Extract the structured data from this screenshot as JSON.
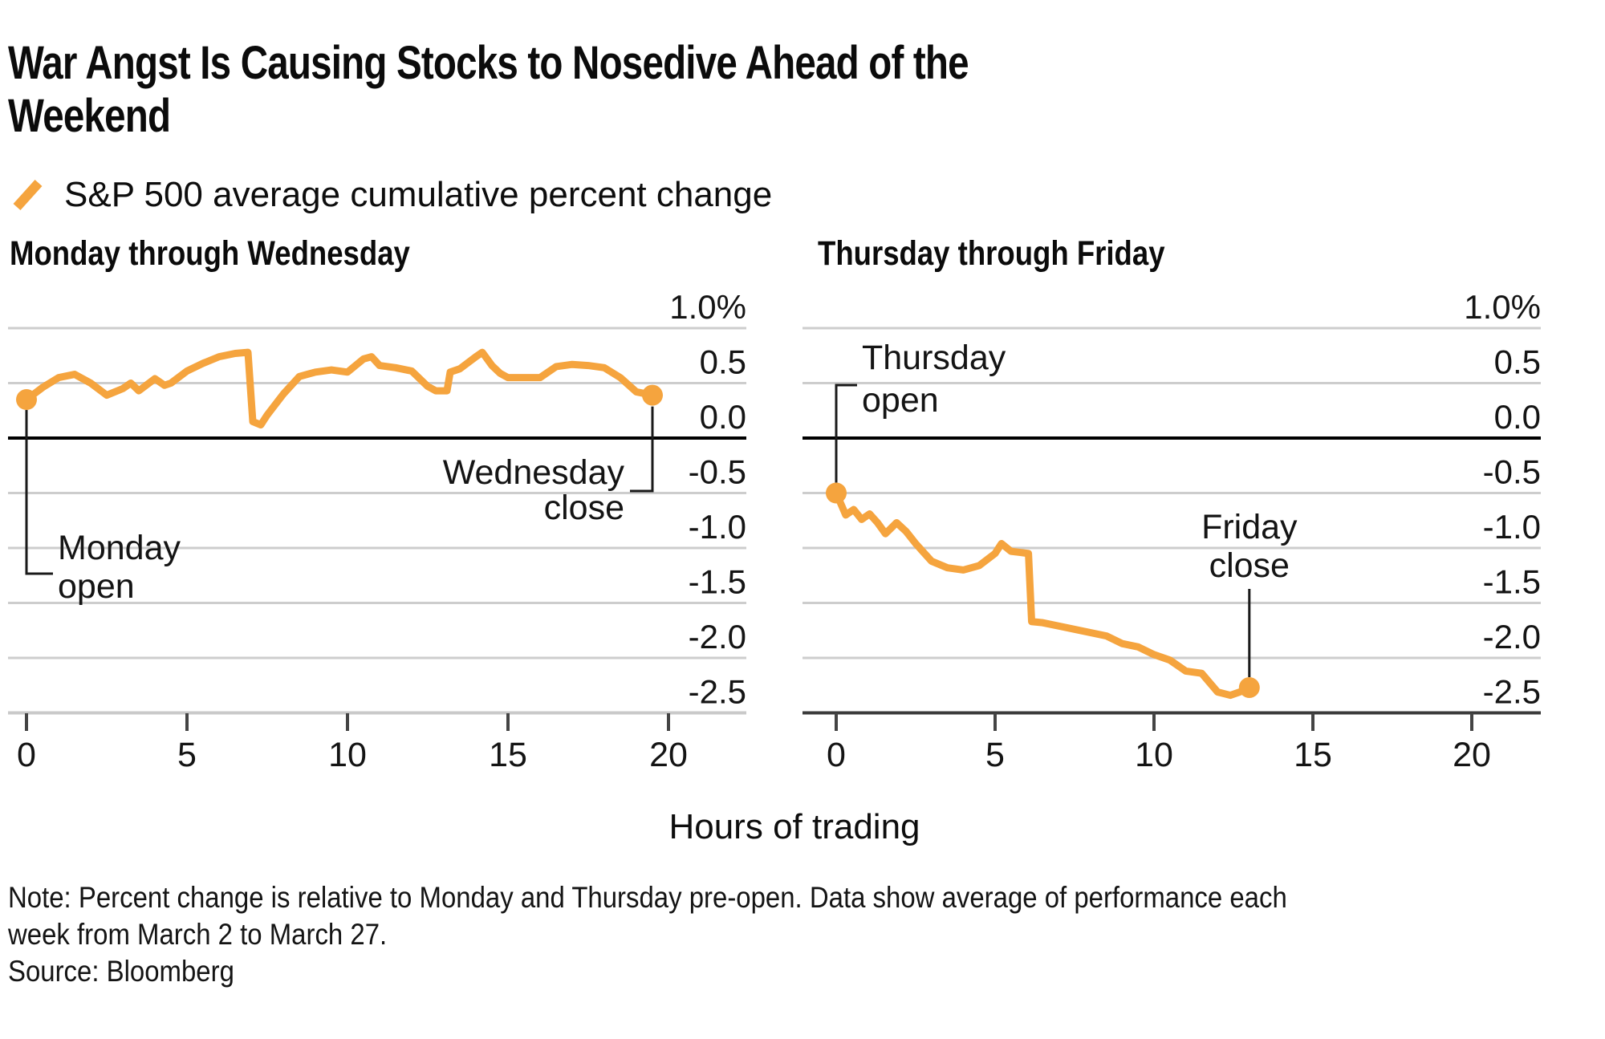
{
  "page": {
    "title_lines": [
      "War Angst Is Causing Stocks to Nosedive Ahead of the",
      "Weekend"
    ],
    "legend_label": "S&P 500 average cumulative percent change",
    "xaxis_title": "Hours of trading",
    "note_lines": [
      "Note: Percent change is relative to Monday and Thursday pre-open. Data show average of performance each",
      "week from March 2 to March 27."
    ],
    "source": "Source: Bloomberg"
  },
  "colors": {
    "accent_orange": "#F5A43E",
    "grid": "#CDCDCD",
    "grid_bottom_light": "#C9C9C9",
    "zero_line": "#000000",
    "axis_dark": "#3A3A3A",
    "tick": "#444444",
    "annotation_line": "#1A1A1A",
    "text": "#141414"
  },
  "chart_data": [
    {
      "type": "line",
      "title": "Monday through Wednesday",
      "ylabel": "percent change",
      "xlabel": "Hours of trading",
      "x_ticks": [
        0,
        5,
        10,
        15,
        20
      ],
      "y_tick_labels": [
        "1.0%",
        "0.5",
        "0.0",
        "-0.5",
        "-1.0",
        "-1.5",
        "-2.0",
        "-2.5"
      ],
      "y_tick_values": [
        1.0,
        0.5,
        0.0,
        -0.5,
        -1.0,
        -1.5,
        -2.0,
        -2.5
      ],
      "ylim": [
        -2.5,
        1.0
      ],
      "xlim": [
        0,
        20
      ],
      "grid": true,
      "bottom_axis_style": "light",
      "series": {
        "name": "S&P 500 average cumulative percent change",
        "x": [
          0,
          0.5,
          1,
          1.5,
          2,
          2.5,
          3,
          3.25,
          3.5,
          4,
          4.3,
          4.5,
          5,
          5.5,
          6,
          6.5,
          6.9,
          7.05,
          7.3,
          7.5,
          8,
          8.5,
          9,
          9.5,
          10,
          10.5,
          10.75,
          11,
          11.5,
          12,
          12.5,
          12.75,
          13.1,
          13.2,
          13.5,
          14,
          14.2,
          14.5,
          14.75,
          15,
          15.5,
          16,
          16.5,
          17,
          17.5,
          18,
          18.5,
          19,
          19.5
        ],
        "y": [
          0.35,
          0.46,
          0.55,
          0.58,
          0.5,
          0.39,
          0.45,
          0.5,
          0.43,
          0.54,
          0.48,
          0.5,
          0.61,
          0.68,
          0.74,
          0.77,
          0.78,
          0.15,
          0.12,
          0.21,
          0.4,
          0.56,
          0.6,
          0.62,
          0.6,
          0.72,
          0.74,
          0.66,
          0.64,
          0.61,
          0.47,
          0.43,
          0.43,
          0.6,
          0.63,
          0.74,
          0.78,
          0.66,
          0.59,
          0.55,
          0.55,
          0.55,
          0.65,
          0.67,
          0.66,
          0.64,
          0.55,
          0.42,
          0.39
        ]
      },
      "markers": [
        {
          "hour": 0,
          "value": 0.35,
          "label_lines": [
            "Monday",
            "open"
          ]
        },
        {
          "hour": 19.5,
          "value": 0.39,
          "label_lines": [
            "Wednesday",
            "close"
          ]
        }
      ]
    },
    {
      "type": "line",
      "title": "Thursday through Friday",
      "ylabel": "percent change",
      "xlabel": "Hours of trading",
      "x_ticks": [
        0,
        5,
        10,
        15,
        20
      ],
      "y_tick_labels": [
        "1.0%",
        "0.5",
        "0.0",
        "-0.5",
        "-1.0",
        "-1.5",
        "-2.0",
        "-2.5"
      ],
      "y_tick_values": [
        1.0,
        0.5,
        0.0,
        -0.5,
        -1.0,
        -1.5,
        -2.0,
        -2.5
      ],
      "ylim": [
        -2.5,
        1.0
      ],
      "xlim": [
        0,
        20
      ],
      "grid": true,
      "bottom_axis_style": "dark",
      "series": {
        "name": "S&P 500 average cumulative percent change",
        "x": [
          0,
          0.3,
          0.55,
          0.8,
          1.05,
          1.3,
          1.55,
          1.9,
          2.2,
          2.5,
          3,
          3.5,
          4,
          4.5,
          5,
          5.2,
          5.5,
          6.05,
          6.15,
          6.5,
          7,
          7.5,
          8,
          8.5,
          9,
          9.5,
          10,
          10.5,
          11,
          11.5,
          12,
          12.4,
          12.7,
          13
        ],
        "y": [
          -0.5,
          -0.7,
          -0.65,
          -0.74,
          -0.69,
          -0.77,
          -0.87,
          -0.77,
          -0.85,
          -0.96,
          -1.12,
          -1.18,
          -1.2,
          -1.16,
          -1.05,
          -0.96,
          -1.03,
          -1.05,
          -1.67,
          -1.68,
          -1.71,
          -1.74,
          -1.77,
          -1.8,
          -1.87,
          -1.9,
          -1.97,
          -2.02,
          -2.12,
          -2.14,
          -2.31,
          -2.34,
          -2.31,
          -2.27
        ]
      },
      "markers": [
        {
          "hour": 0,
          "value": -0.5,
          "label_lines": [
            "Thursday",
            "open"
          ]
        },
        {
          "hour": 13,
          "value": -2.27,
          "label_lines": [
            "Friday",
            "close"
          ]
        }
      ]
    }
  ]
}
